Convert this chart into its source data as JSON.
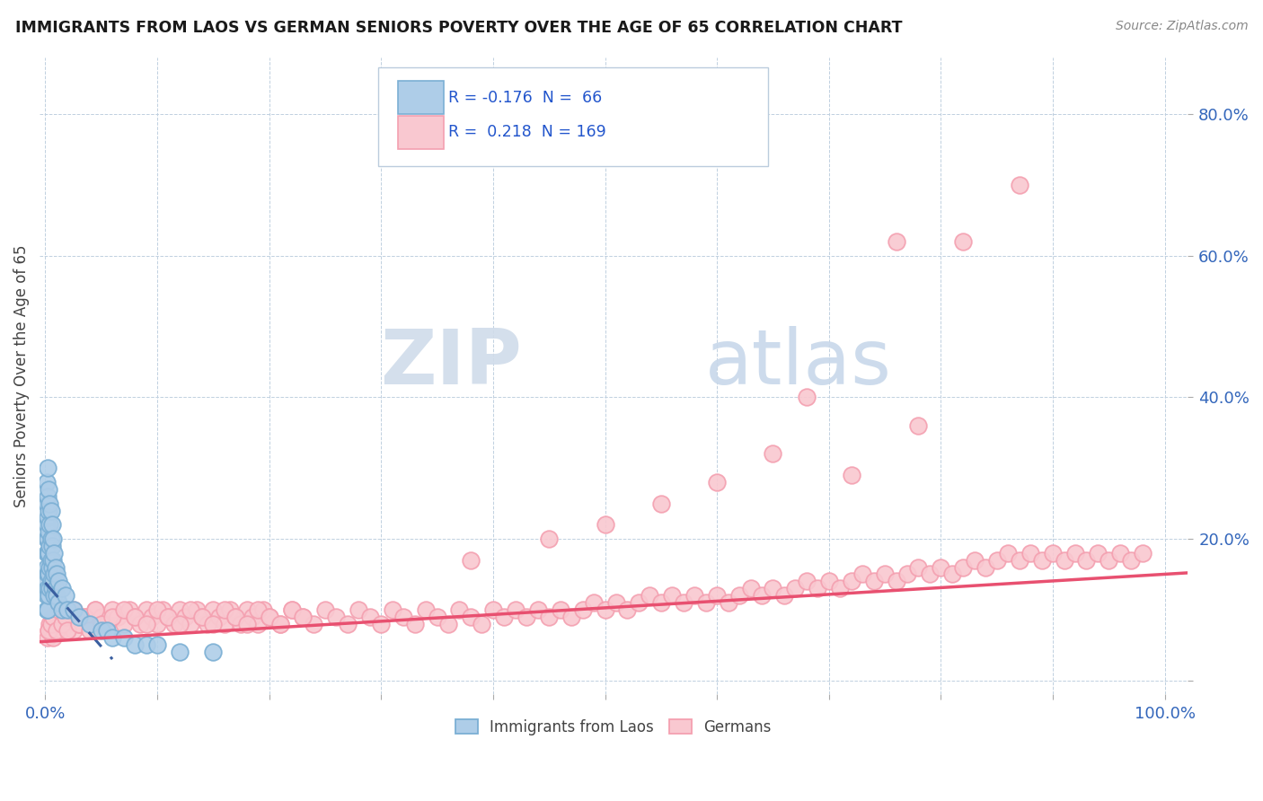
{
  "title": "IMMIGRANTS FROM LAOS VS GERMAN SENIORS POVERTY OVER THE AGE OF 65 CORRELATION CHART",
  "source": "Source: ZipAtlas.com",
  "ylabel": "Seniors Poverty Over the Age of 65",
  "xlim": [
    -0.005,
    1.02
  ],
  "ylim": [
    -0.02,
    0.88
  ],
  "color_laos": "#7bafd4",
  "color_laos_fill": "#aecde8",
  "color_german": "#f4a0b0",
  "color_german_fill": "#f9c8d0",
  "color_trendline_laos": "#3a5fa0",
  "color_trendline_german": "#e85070",
  "background_color": "#ffffff",
  "grid_color": "#c0d0e0",
  "laos_x": [
    0.001,
    0.001,
    0.001,
    0.001,
    0.001,
    0.001,
    0.001,
    0.001,
    0.001,
    0.002,
    0.002,
    0.002,
    0.002,
    0.002,
    0.002,
    0.002,
    0.002,
    0.003,
    0.003,
    0.003,
    0.003,
    0.003,
    0.003,
    0.004,
    0.004,
    0.004,
    0.004,
    0.004,
    0.005,
    0.005,
    0.005,
    0.005,
    0.006,
    0.006,
    0.006,
    0.006,
    0.007,
    0.007,
    0.007,
    0.008,
    0.008,
    0.008,
    0.009,
    0.009,
    0.01,
    0.01,
    0.012,
    0.012,
    0.015,
    0.015,
    0.018,
    0.02,
    0.025,
    0.03,
    0.04,
    0.05,
    0.055,
    0.06,
    0.07,
    0.08,
    0.09,
    0.1,
    0.12,
    0.15
  ],
  "laos_y": [
    0.28,
    0.25,
    0.22,
    0.2,
    0.18,
    0.16,
    0.14,
    0.12,
    0.1,
    0.3,
    0.26,
    0.23,
    0.2,
    0.18,
    0.15,
    0.13,
    0.1,
    0.27,
    0.24,
    0.21,
    0.18,
    0.15,
    0.12,
    0.25,
    0.22,
    0.19,
    0.16,
    0.13,
    0.24,
    0.2,
    0.17,
    0.14,
    0.22,
    0.19,
    0.16,
    0.13,
    0.2,
    0.17,
    0.14,
    0.18,
    0.15,
    0.12,
    0.16,
    0.13,
    0.15,
    0.12,
    0.14,
    0.11,
    0.13,
    0.1,
    0.12,
    0.1,
    0.1,
    0.09,
    0.08,
    0.07,
    0.07,
    0.06,
    0.06,
    0.05,
    0.05,
    0.05,
    0.04,
    0.04
  ],
  "german_x": [
    0.002,
    0.003,
    0.004,
    0.005,
    0.006,
    0.007,
    0.008,
    0.009,
    0.01,
    0.012,
    0.015,
    0.018,
    0.02,
    0.022,
    0.025,
    0.028,
    0.03,
    0.035,
    0.04,
    0.045,
    0.05,
    0.055,
    0.06,
    0.065,
    0.07,
    0.075,
    0.08,
    0.085,
    0.09,
    0.095,
    0.1,
    0.105,
    0.11,
    0.115,
    0.12,
    0.125,
    0.13,
    0.135,
    0.14,
    0.145,
    0.15,
    0.155,
    0.16,
    0.165,
    0.17,
    0.175,
    0.18,
    0.185,
    0.19,
    0.195,
    0.2,
    0.21,
    0.22,
    0.23,
    0.24,
    0.25,
    0.26,
    0.27,
    0.28,
    0.29,
    0.3,
    0.31,
    0.32,
    0.33,
    0.34,
    0.35,
    0.36,
    0.37,
    0.38,
    0.39,
    0.4,
    0.41,
    0.42,
    0.43,
    0.44,
    0.45,
    0.46,
    0.47,
    0.48,
    0.49,
    0.5,
    0.51,
    0.52,
    0.53,
    0.54,
    0.55,
    0.56,
    0.57,
    0.58,
    0.59,
    0.6,
    0.61,
    0.62,
    0.63,
    0.64,
    0.65,
    0.66,
    0.67,
    0.68,
    0.69,
    0.7,
    0.71,
    0.72,
    0.73,
    0.74,
    0.75,
    0.76,
    0.77,
    0.78,
    0.79,
    0.8,
    0.81,
    0.82,
    0.83,
    0.84,
    0.85,
    0.86,
    0.87,
    0.88,
    0.89,
    0.9,
    0.91,
    0.92,
    0.93,
    0.94,
    0.95,
    0.96,
    0.97,
    0.98,
    0.003,
    0.005,
    0.007,
    0.01,
    0.012,
    0.015,
    0.018,
    0.02,
    0.025,
    0.03,
    0.035,
    0.04,
    0.045,
    0.05,
    0.06,
    0.07,
    0.08,
    0.09,
    0.1,
    0.11,
    0.12,
    0.13,
    0.14,
    0.15,
    0.16,
    0.17,
    0.18,
    0.19,
    0.2,
    0.21,
    0.22,
    0.23,
    0.68,
    0.76,
    0.82,
    0.87,
    0.78,
    0.72,
    0.65,
    0.6,
    0.55,
    0.5,
    0.45,
    0.38
  ],
  "german_y": [
    0.06,
    0.07,
    0.08,
    0.07,
    0.09,
    0.06,
    0.08,
    0.07,
    0.09,
    0.08,
    0.07,
    0.09,
    0.08,
    0.1,
    0.07,
    0.09,
    0.08,
    0.09,
    0.08,
    0.1,
    0.09,
    0.08,
    0.1,
    0.09,
    0.08,
    0.1,
    0.09,
    0.08,
    0.1,
    0.09,
    0.08,
    0.1,
    0.09,
    0.08,
    0.1,
    0.09,
    0.08,
    0.1,
    0.09,
    0.08,
    0.1,
    0.09,
    0.08,
    0.1,
    0.09,
    0.08,
    0.1,
    0.09,
    0.08,
    0.1,
    0.09,
    0.08,
    0.1,
    0.09,
    0.08,
    0.1,
    0.09,
    0.08,
    0.1,
    0.09,
    0.08,
    0.1,
    0.09,
    0.08,
    0.1,
    0.09,
    0.08,
    0.1,
    0.09,
    0.08,
    0.1,
    0.09,
    0.1,
    0.09,
    0.1,
    0.09,
    0.1,
    0.09,
    0.1,
    0.11,
    0.1,
    0.11,
    0.1,
    0.11,
    0.12,
    0.11,
    0.12,
    0.11,
    0.12,
    0.11,
    0.12,
    0.11,
    0.12,
    0.13,
    0.12,
    0.13,
    0.12,
    0.13,
    0.14,
    0.13,
    0.14,
    0.13,
    0.14,
    0.15,
    0.14,
    0.15,
    0.14,
    0.15,
    0.16,
    0.15,
    0.16,
    0.15,
    0.16,
    0.17,
    0.16,
    0.17,
    0.18,
    0.17,
    0.18,
    0.17,
    0.18,
    0.17,
    0.18,
    0.17,
    0.18,
    0.17,
    0.18,
    0.17,
    0.18,
    0.07,
    0.08,
    0.09,
    0.07,
    0.1,
    0.08,
    0.09,
    0.07,
    0.1,
    0.08,
    0.09,
    0.07,
    0.1,
    0.08,
    0.09,
    0.1,
    0.09,
    0.08,
    0.1,
    0.09,
    0.08,
    0.1,
    0.09,
    0.08,
    0.1,
    0.09,
    0.08,
    0.1,
    0.09,
    0.08,
    0.1,
    0.09,
    0.4,
    0.62,
    0.62,
    0.7,
    0.36,
    0.29,
    0.32,
    0.28,
    0.25,
    0.22,
    0.2,
    0.17
  ]
}
